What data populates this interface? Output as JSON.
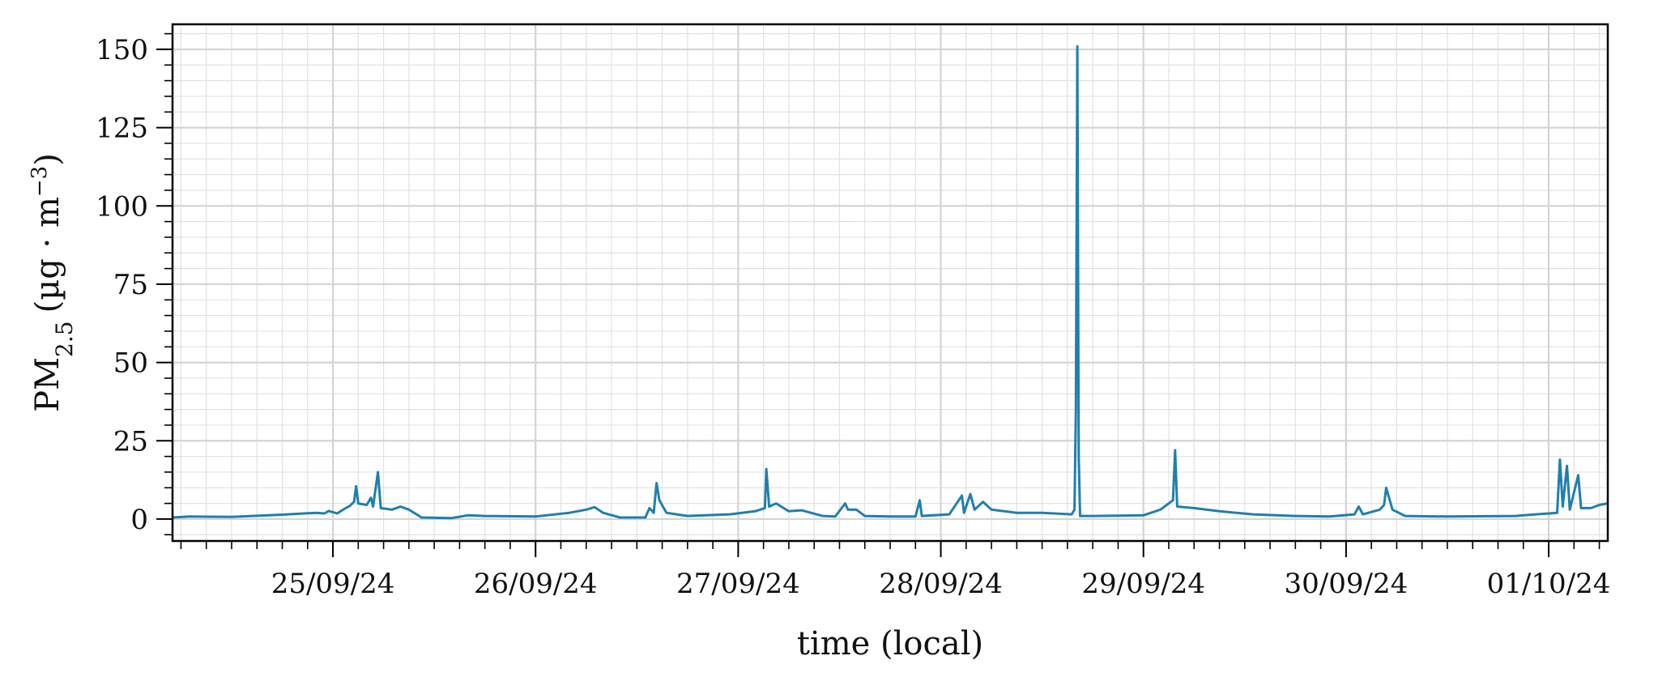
{
  "chart_data": {
    "type": "line",
    "xlabel": "time (local)",
    "ylabel": {
      "main": "PM",
      "subscript": "2.5",
      "unit_open": "(µg · m",
      "unit_sup": "−3",
      "unit_close": ")"
    },
    "xlim": [
      "2024-09-24T05:00",
      "2024-10-01T07:00"
    ],
    "ylim": [
      -7,
      158
    ],
    "x_ticks": [
      {
        "date": "2024-09-25",
        "label": "25/09/24"
      },
      {
        "date": "2024-09-26",
        "label": "26/09/24"
      },
      {
        "date": "2024-09-27",
        "label": "27/09/24"
      },
      {
        "date": "2024-09-28",
        "label": "28/09/24"
      },
      {
        "date": "2024-09-29",
        "label": "29/09/24"
      },
      {
        "date": "2024-09-30",
        "label": "30/09/24"
      },
      {
        "date": "2024-10-01",
        "label": "01/10/24"
      }
    ],
    "y_ticks": [
      0,
      25,
      50,
      75,
      100,
      125,
      150
    ],
    "grid": true,
    "series_color": "#1f7fae",
    "series": [
      {
        "points": [
          [
            "2024-09-24T05:00",
            0.5
          ],
          [
            "2024-09-24T07:00",
            0.8
          ],
          [
            "2024-09-24T12:00",
            0.7
          ],
          [
            "2024-09-24T18:00",
            1.4
          ],
          [
            "2024-09-24T22:00",
            2.0
          ],
          [
            "2024-09-24T23:00",
            1.8
          ],
          [
            "2024-09-24T23:30",
            2.6
          ],
          [
            "2024-09-25T00:00",
            2.2
          ],
          [
            "2024-09-25T00:30",
            1.8
          ],
          [
            "2024-09-25T01:30",
            3.5
          ],
          [
            "2024-09-25T02:00",
            4.2
          ],
          [
            "2024-09-25T02:30",
            5.5
          ],
          [
            "2024-09-25T02:45",
            10.5
          ],
          [
            "2024-09-25T03:00",
            5.0
          ],
          [
            "2024-09-25T04:00",
            4.5
          ],
          [
            "2024-09-25T04:30",
            6.8
          ],
          [
            "2024-09-25T04:45",
            4.0
          ],
          [
            "2024-09-25T05:20",
            15.0
          ],
          [
            "2024-09-25T05:40",
            3.5
          ],
          [
            "2024-09-25T07:00",
            3.0
          ],
          [
            "2024-09-25T08:00",
            4.0
          ],
          [
            "2024-09-25T09:00",
            3.0
          ],
          [
            "2024-09-25T10:30",
            0.5
          ],
          [
            "2024-09-25T14:00",
            0.3
          ],
          [
            "2024-09-25T16:00",
            1.2
          ],
          [
            "2024-09-25T18:00",
            1.0
          ],
          [
            "2024-09-26T00:00",
            0.8
          ],
          [
            "2024-09-26T04:00",
            2.0
          ],
          [
            "2024-09-26T06:00",
            3.0
          ],
          [
            "2024-09-26T07:00",
            3.8
          ],
          [
            "2024-09-26T08:00",
            2.0
          ],
          [
            "2024-09-26T10:00",
            0.5
          ],
          [
            "2024-09-26T13:00",
            0.5
          ],
          [
            "2024-09-26T13:30",
            3.5
          ],
          [
            "2024-09-26T14:00",
            2.0
          ],
          [
            "2024-09-26T14:20",
            11.5
          ],
          [
            "2024-09-26T14:40",
            6.0
          ],
          [
            "2024-09-26T15:30",
            2.0
          ],
          [
            "2024-09-26T18:00",
            1.0
          ],
          [
            "2024-09-26T23:00",
            1.5
          ],
          [
            "2024-09-27T02:00",
            2.5
          ],
          [
            "2024-09-27T03:10",
            3.5
          ],
          [
            "2024-09-27T03:20",
            16.0
          ],
          [
            "2024-09-27T03:40",
            4.0
          ],
          [
            "2024-09-27T04:30",
            5.0
          ],
          [
            "2024-09-27T06:00",
            2.5
          ],
          [
            "2024-09-27T07:30",
            2.8
          ],
          [
            "2024-09-27T10:00",
            1.0
          ],
          [
            "2024-09-27T11:30",
            0.8
          ],
          [
            "2024-09-27T12:40",
            5.0
          ],
          [
            "2024-09-27T13:00",
            3.0
          ],
          [
            "2024-09-27T14:00",
            3.0
          ],
          [
            "2024-09-27T15:00",
            1.0
          ],
          [
            "2024-09-27T18:00",
            0.8
          ],
          [
            "2024-09-27T21:00",
            0.8
          ],
          [
            "2024-09-27T21:30",
            6.0
          ],
          [
            "2024-09-27T21:45",
            1.0
          ],
          [
            "2024-09-28T01:00",
            1.5
          ],
          [
            "2024-09-28T02:30",
            7.5
          ],
          [
            "2024-09-28T02:45",
            2.0
          ],
          [
            "2024-09-28T03:30",
            8.0
          ],
          [
            "2024-09-28T04:00",
            3.0
          ],
          [
            "2024-09-28T05:00",
            5.5
          ],
          [
            "2024-09-28T06:00",
            3.0
          ],
          [
            "2024-09-28T09:00",
            2.0
          ],
          [
            "2024-09-28T12:00",
            2.0
          ],
          [
            "2024-09-28T15:30",
            1.5
          ],
          [
            "2024-09-28T15:50",
            3.0
          ],
          [
            "2024-09-28T16:00",
            35.0
          ],
          [
            "2024-09-28T16:10",
            151.0
          ],
          [
            "2024-09-28T16:20",
            20.0
          ],
          [
            "2024-09-28T16:30",
            1.0
          ],
          [
            "2024-09-28T18:00",
            1.0
          ],
          [
            "2024-09-29T00:00",
            1.2
          ],
          [
            "2024-09-29T02:00",
            3.0
          ],
          [
            "2024-09-29T03:00",
            5.0
          ],
          [
            "2024-09-29T03:30",
            6.0
          ],
          [
            "2024-09-29T03:45",
            22.0
          ],
          [
            "2024-09-29T04:00",
            4.0
          ],
          [
            "2024-09-29T06:00",
            3.5
          ],
          [
            "2024-09-29T09:00",
            2.5
          ],
          [
            "2024-09-29T13:00",
            1.5
          ],
          [
            "2024-09-29T18:00",
            1.0
          ],
          [
            "2024-09-29T22:00",
            0.8
          ],
          [
            "2024-09-30T01:00",
            1.5
          ],
          [
            "2024-09-30T01:30",
            4.0
          ],
          [
            "2024-09-30T02:00",
            1.5
          ],
          [
            "2024-09-30T04:00",
            3.0
          ],
          [
            "2024-09-30T04:30",
            4.5
          ],
          [
            "2024-09-30T04:45",
            10.0
          ],
          [
            "2024-09-30T05:30",
            3.0
          ],
          [
            "2024-09-30T07:00",
            1.0
          ],
          [
            "2024-09-30T12:00",
            0.8
          ],
          [
            "2024-09-30T20:00",
            1.0
          ],
          [
            "2024-10-01T01:00",
            2.0
          ],
          [
            "2024-10-01T01:20",
            19.0
          ],
          [
            "2024-10-01T01:40",
            4.0
          ],
          [
            "2024-10-01T02:10",
            17.0
          ],
          [
            "2024-10-01T02:30",
            3.0
          ],
          [
            "2024-10-01T03:30",
            14.0
          ],
          [
            "2024-10-01T03:50",
            3.5
          ],
          [
            "2024-10-01T05:00",
            3.5
          ],
          [
            "2024-10-01T06:00",
            4.5
          ],
          [
            "2024-10-01T07:00",
            5.0
          ]
        ]
      }
    ]
  }
}
